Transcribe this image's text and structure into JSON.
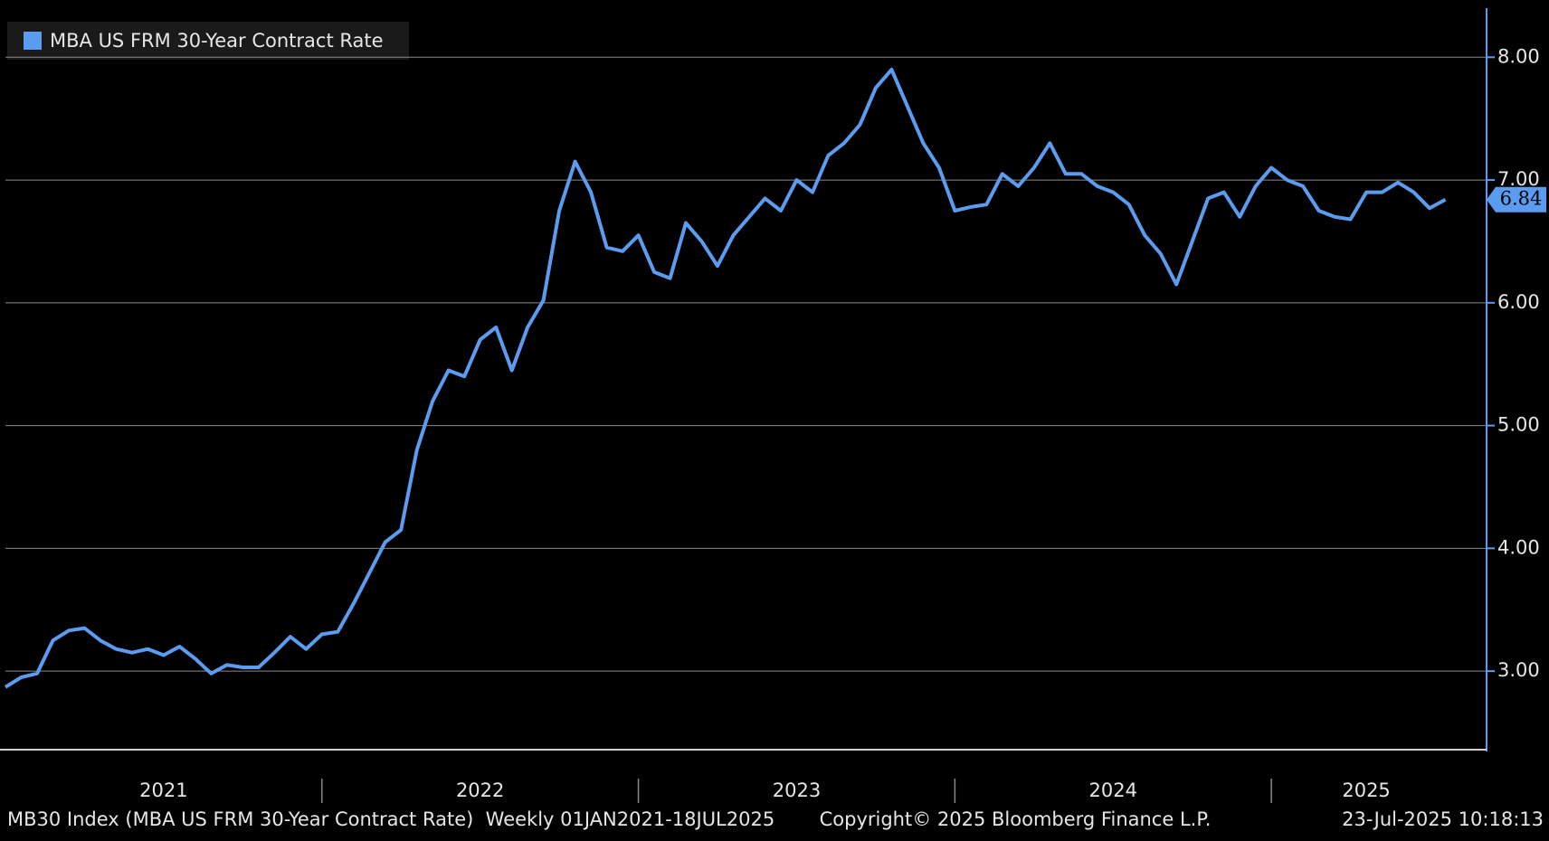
{
  "chart_data": {
    "type": "line",
    "x": [
      2021.0,
      2021.05,
      2021.1,
      2021.15,
      2021.2,
      2021.25,
      2021.3,
      2021.35,
      2021.4,
      2021.45,
      2021.5,
      2021.55,
      2021.6,
      2021.65,
      2021.7,
      2021.75,
      2021.8,
      2021.85,
      2021.9,
      2021.95,
      2022.0,
      2022.05,
      2022.1,
      2022.15,
      2022.2,
      2022.25,
      2022.3,
      2022.35,
      2022.4,
      2022.45,
      2022.5,
      2022.55,
      2022.6,
      2022.65,
      2022.7,
      2022.75,
      2022.8,
      2022.85,
      2022.9,
      2022.95,
      2023.0,
      2023.05,
      2023.1,
      2023.15,
      2023.2,
      2023.25,
      2023.3,
      2023.35,
      2023.4,
      2023.45,
      2023.5,
      2023.55,
      2023.6,
      2023.65,
      2023.7,
      2023.75,
      2023.8,
      2023.85,
      2023.9,
      2023.95,
      2024.0,
      2024.05,
      2024.1,
      2024.15,
      2024.2,
      2024.25,
      2024.3,
      2024.35,
      2024.4,
      2024.45,
      2024.5,
      2024.55,
      2024.6,
      2024.65,
      2024.7,
      2024.75,
      2024.8,
      2024.85,
      2024.9,
      2024.95,
      2025.0,
      2025.05,
      2025.1,
      2025.15,
      2025.2,
      2025.25,
      2025.3,
      2025.35,
      2025.4,
      2025.45,
      2025.5,
      2025.55
    ],
    "series": [
      {
        "name": "MBA US FRM 30-Year Contract Rate",
        "color": "#5b9cf0",
        "values": [
          2.87,
          2.95,
          2.98,
          3.25,
          3.33,
          3.35,
          3.25,
          3.18,
          3.15,
          3.18,
          3.13,
          3.2,
          3.1,
          2.98,
          3.05,
          3.03,
          3.03,
          3.15,
          3.28,
          3.18,
          3.3,
          3.32,
          3.55,
          3.8,
          4.05,
          4.15,
          4.8,
          5.2,
          5.45,
          5.4,
          5.7,
          5.8,
          5.45,
          5.8,
          6.02,
          6.75,
          7.15,
          6.9,
          6.45,
          6.42,
          6.55,
          6.25,
          6.2,
          6.65,
          6.5,
          6.3,
          6.55,
          6.7,
          6.85,
          6.75,
          7.0,
          6.9,
          7.2,
          7.3,
          7.45,
          7.75,
          7.9,
          7.6,
          7.3,
          7.1,
          6.75,
          6.78,
          6.8,
          7.05,
          6.95,
          7.1,
          7.3,
          7.05,
          7.05,
          6.95,
          6.9,
          6.8,
          6.55,
          6.4,
          6.15,
          6.5,
          6.85,
          6.9,
          6.7,
          6.95,
          7.1,
          7.0,
          6.95,
          6.75,
          6.7,
          6.68,
          6.9,
          6.9,
          6.98,
          6.9,
          6.77,
          6.84
        ]
      }
    ],
    "xlim": [
      2021.0,
      2025.68
    ],
    "xticks": [
      {
        "value": 2021.5,
        "label": "2021"
      },
      {
        "value": 2022.5,
        "label": "2022"
      },
      {
        "value": 2023.5,
        "label": "2023"
      },
      {
        "value": 2024.5,
        "label": "2024"
      },
      {
        "value": 2025.3,
        "label": "2025"
      }
    ],
    "ylim": [
      2.36,
      8.4
    ],
    "yticks": [
      {
        "value": 3,
        "label": "3.00"
      },
      {
        "value": 4,
        "label": "4.00"
      },
      {
        "value": 5,
        "label": "5.00"
      },
      {
        "value": 6,
        "label": "6.00"
      },
      {
        "value": 7,
        "label": "7.00"
      },
      {
        "value": 8,
        "label": "8.00"
      }
    ],
    "grid": true,
    "legend": "top-left",
    "footer_left": "MB30 Index (MBA US FRM 30-Year Contract Rate)  Weekly 01JAN2021-18JUL2025",
    "footer_center": "Copyright© 2025 Bloomberg Finance L.P.",
    "footer_right": "23-Jul-2025 10:18:13"
  }
}
